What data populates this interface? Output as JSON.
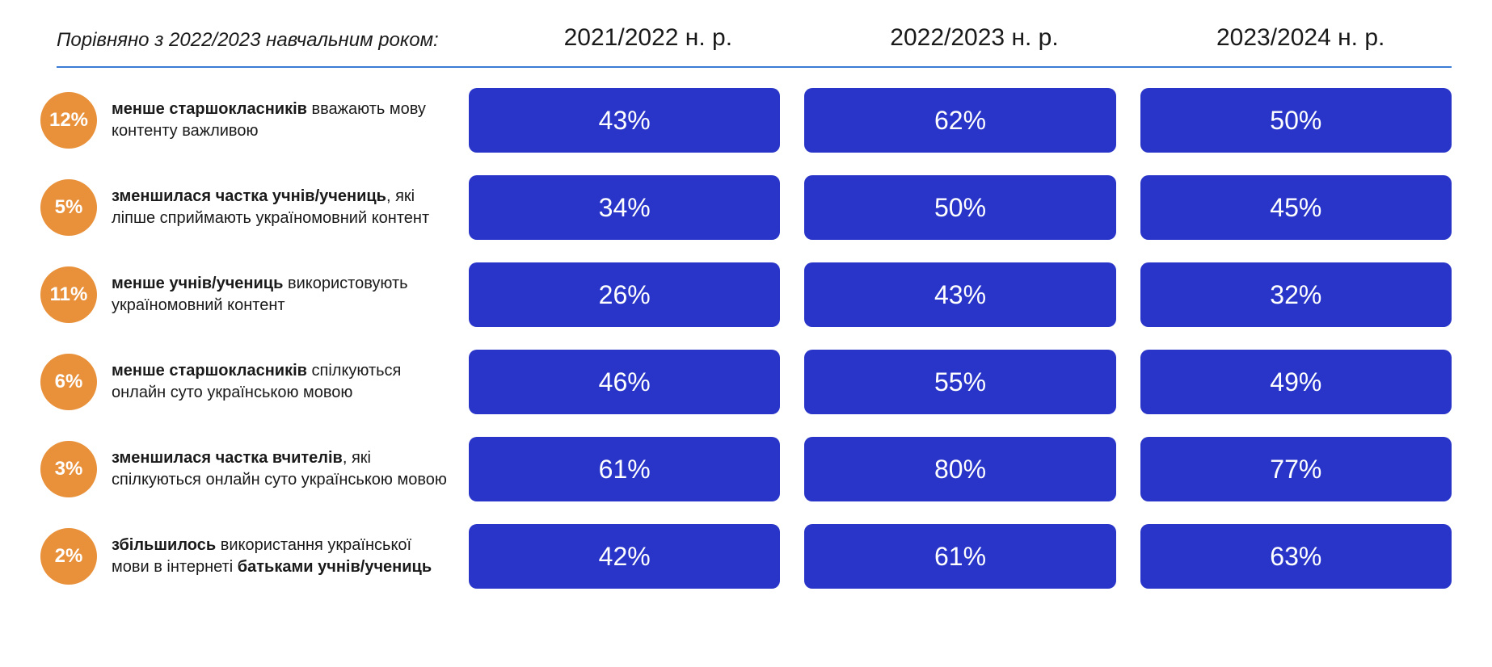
{
  "header": {
    "title": "Порівняно з 2022/2023 навчальним роком:",
    "title_fontsize": 24,
    "title_italic": true,
    "columns": [
      "2021/2022 н. р.",
      "2022/2023 н. р.",
      "2023/2024 н. р."
    ],
    "col_fontsize": 30,
    "divider_color": "#3a7bd5"
  },
  "style": {
    "background_color": "#ffffff",
    "badge_color": "#e8903a",
    "badge_text_color": "#ffffff",
    "badge_fontsize": 24,
    "cell_color": "#2935c8",
    "cell_text_color": "#ffffff",
    "cell_fontsize": 32,
    "cell_border_radius": 10,
    "label_fontsize": 20,
    "label_color": "#1a1a1a"
  },
  "rows": [
    {
      "badge": "12%",
      "label_bold1": "менше старшокласників",
      "label_rest": " вважають мову контенту важливою",
      "values": [
        "43%",
        "62%",
        "50%"
      ]
    },
    {
      "badge": "5%",
      "label_bold1": "зменшилася частка учнів/учениць",
      "label_rest": ", які ліпше сприймають україномовний контент",
      "values": [
        "34%",
        "50%",
        "45%"
      ]
    },
    {
      "badge": "11%",
      "label_bold1": "менше учнів/учениць",
      "label_rest": " використовують україномовний контент",
      "values": [
        "26%",
        "43%",
        "32%"
      ]
    },
    {
      "badge": "6%",
      "label_bold1": "менше старшокласників",
      "label_rest": " спілкуються онлайн суто українською мовою",
      "values": [
        "46%",
        "55%",
        "49%"
      ]
    },
    {
      "badge": "3%",
      "label_bold1": "зменшилася частка вчителів",
      "label_rest": ", які спілкуються онлайн суто українською мовою",
      "values": [
        "61%",
        "80%",
        "77%"
      ]
    },
    {
      "badge": "2%",
      "label_pre": "збільшилось",
      "label_mid": " використання української мови в інтернеті ",
      "label_bold2": "батьками учнів/учениць",
      "values": [
        "42%",
        "61%",
        "63%"
      ]
    }
  ]
}
